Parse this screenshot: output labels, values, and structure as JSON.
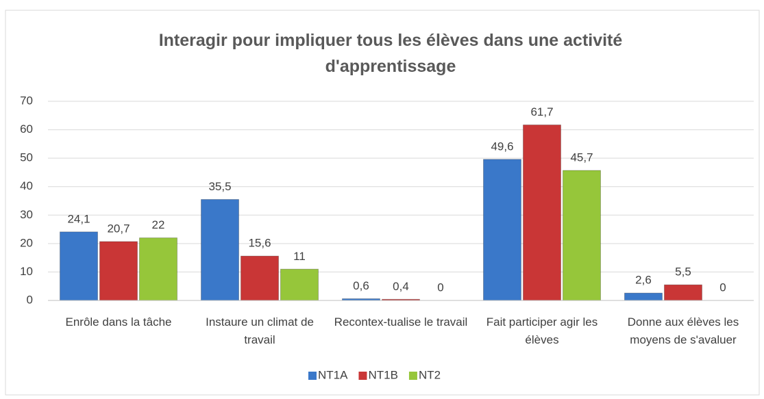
{
  "chart_data": {
    "type": "bar",
    "title": "Interagir pour impliquer tous les élèves dans une activité d'apprentissage",
    "categories": [
      "Enrôle dans la tâche",
      "Instaure un climat de travail",
      "Recontex-tualise le travail",
      "Fait participer agir les élèves",
      "Donne aux élèves les moyens de s'avaluer"
    ],
    "series": [
      {
        "name": "NT1A",
        "color": "#3a78c9",
        "values": [
          24.1,
          35.5,
          0.6,
          49.6,
          2.6
        ],
        "value_labels": [
          "24,1",
          "35,5",
          "0,6",
          "49,6",
          "2,6"
        ]
      },
      {
        "name": "NT1B",
        "color": "#c93636",
        "values": [
          20.7,
          15.6,
          0.4,
          61.7,
          5.5
        ],
        "value_labels": [
          "20,7",
          "15,6",
          "0,4",
          "61,7",
          "5,5"
        ]
      },
      {
        "name": "NT2",
        "color": "#96c63a",
        "values": [
          22,
          11,
          0,
          45.7,
          0
        ],
        "value_labels": [
          "22",
          "11",
          "0",
          "45,7",
          "0"
        ]
      }
    ],
    "ylim": [
      0,
      70
    ],
    "yticks": [
      0,
      10,
      20,
      30,
      40,
      50,
      60,
      70
    ],
    "grid": true,
    "legend": "bottom"
  }
}
